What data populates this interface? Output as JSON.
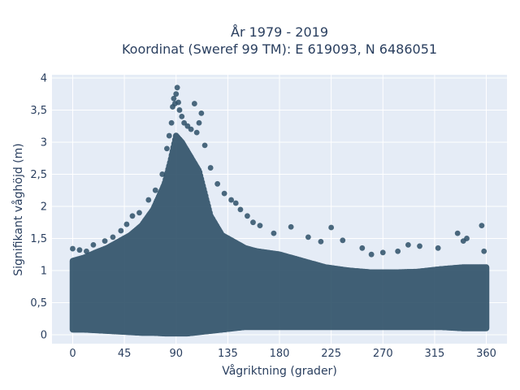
{
  "chart_data": {
    "type": "scatter",
    "title_line1": "År 1979 - 2019",
    "title_line2": "Koordinat (Sweref 99 TM): E 619093, N 6486051",
    "xlabel": "Vågriktning (grader)",
    "ylabel": "Signifikant våghöjd (m)",
    "xlim": [
      -18,
      378
    ],
    "ylim": [
      -0.14,
      4.05
    ],
    "grid": true,
    "marker_color": "#2e5067",
    "background": "#e5ecf6",
    "x_ticks": [
      {
        "value": 0,
        "label": "0"
      },
      {
        "value": 45,
        "label": "45"
      },
      {
        "value": 90,
        "label": "90"
      },
      {
        "value": 135,
        "label": "135"
      },
      {
        "value": 180,
        "label": "180"
      },
      {
        "value": 225,
        "label": "225"
      },
      {
        "value": 270,
        "label": "270"
      },
      {
        "value": 315,
        "label": "315"
      },
      {
        "value": 360,
        "label": "360"
      }
    ],
    "y_ticks": [
      {
        "value": 0,
        "label": "0"
      },
      {
        "value": 0.5,
        "label": "0,5"
      },
      {
        "value": 1,
        "label": "1"
      },
      {
        "value": 1.5,
        "label": "1,5"
      },
      {
        "value": 2,
        "label": "2"
      },
      {
        "value": 2.5,
        "label": "2,5"
      },
      {
        "value": 3,
        "label": "3"
      },
      {
        "value": 3.5,
        "label": "3,5"
      },
      {
        "value": 4,
        "label": "4"
      }
    ],
    "series": [
      {
        "envelope": {
          "x": [
            0,
            10,
            20,
            30,
            40,
            50,
            60,
            70,
            80,
            85,
            90,
            95,
            100,
            105,
            110,
            115,
            120,
            130,
            140,
            150,
            160,
            180,
            200,
            220,
            240,
            260,
            280,
            300,
            320,
            340,
            360
          ],
          "y_min": [
            0.08,
            0.08,
            0.07,
            0.06,
            0.05,
            0.04,
            0.03,
            0.03,
            0.02,
            0.02,
            0.02,
            0.02,
            0.02,
            0.03,
            0.04,
            0.05,
            0.06,
            0.08,
            0.1,
            0.12,
            0.12,
            0.12,
            0.12,
            0.12,
            0.12,
            0.12,
            0.12,
            0.12,
            0.12,
            0.1,
            0.1
          ],
          "y_max": [
            1.15,
            1.2,
            1.28,
            1.35,
            1.45,
            1.55,
            1.7,
            1.95,
            2.35,
            2.7,
            3.1,
            3.0,
            2.85,
            2.7,
            2.55,
            2.2,
            1.85,
            1.55,
            1.45,
            1.35,
            1.3,
            1.25,
            1.15,
            1.05,
            1.0,
            0.97,
            0.97,
            0.98,
            1.02,
            1.05,
            1.05
          ]
        },
        "outliers": [
          [
            0,
            1.34
          ],
          [
            6,
            1.32
          ],
          [
            12,
            1.3
          ],
          [
            18,
            1.4
          ],
          [
            28,
            1.46
          ],
          [
            35,
            1.52
          ],
          [
            42,
            1.62
          ],
          [
            47,
            1.72
          ],
          [
            52,
            1.85
          ],
          [
            58,
            1.9
          ],
          [
            66,
            2.1
          ],
          [
            72,
            2.25
          ],
          [
            78,
            2.5
          ],
          [
            82,
            2.9
          ],
          [
            84,
            3.1
          ],
          [
            86,
            3.3
          ],
          [
            87,
            3.55
          ],
          [
            88,
            3.68
          ],
          [
            89,
            3.6
          ],
          [
            90,
            3.75
          ],
          [
            91,
            3.85
          ],
          [
            92,
            3.62
          ],
          [
            93,
            3.5
          ],
          [
            95,
            3.4
          ],
          [
            97,
            3.3
          ],
          [
            100,
            3.25
          ],
          [
            103,
            3.2
          ],
          [
            106,
            3.6
          ],
          [
            108,
            3.15
          ],
          [
            110,
            3.3
          ],
          [
            112,
            3.45
          ],
          [
            115,
            2.95
          ],
          [
            120,
            2.6
          ],
          [
            126,
            2.35
          ],
          [
            132,
            2.2
          ],
          [
            138,
            2.1
          ],
          [
            142,
            2.05
          ],
          [
            146,
            1.95
          ],
          [
            152,
            1.85
          ],
          [
            157,
            1.75
          ],
          [
            163,
            1.7
          ],
          [
            175,
            1.58
          ],
          [
            190,
            1.68
          ],
          [
            205,
            1.52
          ],
          [
            216,
            1.45
          ],
          [
            225,
            1.67
          ],
          [
            235,
            1.47
          ],
          [
            252,
            1.35
          ],
          [
            260,
            1.25
          ],
          [
            270,
            1.28
          ],
          [
            283,
            1.3
          ],
          [
            292,
            1.4
          ],
          [
            302,
            1.38
          ],
          [
            318,
            1.35
          ],
          [
            335,
            1.58
          ],
          [
            340,
            1.46
          ],
          [
            343,
            1.5
          ],
          [
            356,
            1.7
          ],
          [
            358,
            1.3
          ]
        ]
      }
    ]
  }
}
